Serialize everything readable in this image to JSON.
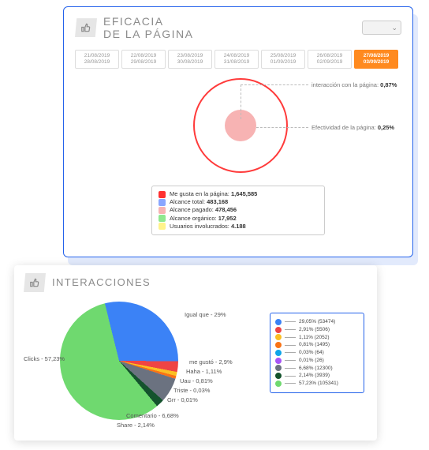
{
  "card1": {
    "title_line1": "EFICACIA",
    "title_line2": "DE LA PÁGINA",
    "dates": [
      {
        "a": "21/08/2019",
        "b": "28/08/2019"
      },
      {
        "a": "22/08/2019",
        "b": "29/08/2019"
      },
      {
        "a": "23/08/2019",
        "b": "30/08/2019"
      },
      {
        "a": "24/08/2019",
        "b": "31/08/2019"
      },
      {
        "a": "25/08/2019",
        "b": "01/09/2019"
      },
      {
        "a": "26/08/2019",
        "b": "02/09/2019"
      },
      {
        "a": "27/08/2019",
        "b": "03/09/2019",
        "active": true
      }
    ],
    "circle": {
      "outer_color": "#ff3b3b",
      "inner_color": "#f7b3b3",
      "callout1_label": "interacción con la página:",
      "callout1_value": "0,87%",
      "callout2_label": "Efectividad de la página:",
      "callout2_value": "0,25%"
    },
    "legend": [
      {
        "color": "#ff3131",
        "label": "Me gusta en la página:",
        "value": "1,645,585"
      },
      {
        "color": "#8aa6ff",
        "label": "Alcance total:",
        "value": "483,168"
      },
      {
        "color": "#f7b3b3",
        "label": "Alcance pagado:",
        "value": "478,456"
      },
      {
        "color": "#8fe88f",
        "label": "Alcance orgánico:",
        "value": "17,952"
      },
      {
        "color": "#fff38a",
        "label": "Usuarios involucrados:",
        "value": "4.188"
      }
    ]
  },
  "card2": {
    "title": "INTERACCIONES",
    "pie": {
      "slices": [
        {
          "label": "Clicks",
          "pct": 57.23,
          "color": "#6fd96f"
        },
        {
          "label": "Igual que",
          "pct": 29.0,
          "color": "#3b82f6"
        },
        {
          "label": "me gustó",
          "pct": 2.91,
          "color": "#ef4444"
        },
        {
          "label": "Haha",
          "pct": 1.11,
          "color": "#fbbf24"
        },
        {
          "label": "Uau",
          "pct": 0.81,
          "color": "#f97316"
        },
        {
          "label": "Triste",
          "pct": 0.03,
          "color": "#0ea5e9"
        },
        {
          "label": "Grr",
          "pct": 0.01,
          "color": "#a855f7"
        },
        {
          "label": "Comentario",
          "pct": 6.68,
          "color": "#6b7280"
        },
        {
          "label": "Share",
          "pct": 2.14,
          "color": "#14532d"
        }
      ],
      "label_clicks": "Clicks - 57,23%",
      "label_igual": "Igual que - 29%",
      "label_megusto": "me gustó - 2,9%",
      "label_haha": "Haha - 1,11%",
      "label_uau": "Uau - 0,81%",
      "label_triste": "Triste - 0,03%",
      "label_grr": "Grr - 0,01%",
      "label_comentario": "Comentario - 6,68%",
      "label_share": "Share - 2,14%"
    },
    "legend": [
      {
        "color": "#3b82f6",
        "text": "29,05% (53474)"
      },
      {
        "color": "#ef4444",
        "text": "2,91% (5506)"
      },
      {
        "color": "#fbbf24",
        "text": "1,11% (2052)"
      },
      {
        "color": "#f97316",
        "text": "0,81% (1495)"
      },
      {
        "color": "#0ea5e9",
        "text": "0,03% (64)"
      },
      {
        "color": "#a855f7",
        "text": "0,01% (26)"
      },
      {
        "color": "#6b7280",
        "text": "6,68% (12300)"
      },
      {
        "color": "#14532d",
        "text": "2,14% (3939)"
      },
      {
        "color": "#6fd96f",
        "text": "57,23% (105341)"
      }
    ]
  }
}
